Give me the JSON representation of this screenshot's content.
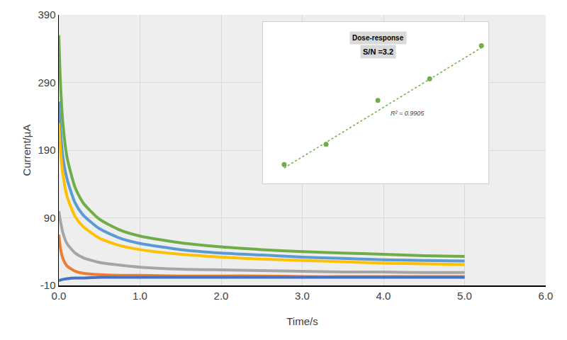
{
  "chart_data": [
    {
      "type": "line",
      "x_label": "Time/s",
      "y_label": "Current/µA",
      "x": [
        0,
        0.02,
        0.05,
        0.1,
        0.2,
        0.3,
        0.5,
        0.75,
        1,
        1.5,
        2,
        2.5,
        3,
        3.5,
        4,
        4.5,
        5
      ],
      "series": [
        {
          "color": "#70ad47",
          "values": [
            360,
            290,
            230,
            180,
            135,
            112,
            88,
            72,
            63,
            53,
            47,
            43,
            40,
            38,
            36,
            34,
            33
          ]
        },
        {
          "color": "#5b9bd5",
          "values": [
            262,
            220,
            180,
            148,
            112,
            94,
            74,
            60,
            52,
            43,
            38,
            35,
            32,
            30,
            28,
            27,
            26
          ]
        },
        {
          "color": "#ffc000",
          "values": [
            230,
            190,
            155,
            122,
            92,
            77,
            60,
            49,
            43,
            36,
            32,
            29,
            27,
            25,
            23,
            22,
            21
          ]
        },
        {
          "color": "#a5a5a5",
          "values": [
            100,
            85,
            68,
            52,
            38,
            31,
            24,
            20,
            17,
            14,
            13,
            12,
            11,
            10,
            10,
            9,
            9
          ]
        },
        {
          "color": "#ed7d31",
          "values": [
            65,
            45,
            30,
            19,
            11,
            8,
            6,
            5,
            5,
            4,
            4,
            4,
            3,
            3,
            3,
            3,
            3
          ]
        },
        {
          "color": "#4472c4",
          "values": [
            -3,
            -2,
            -1,
            0,
            1,
            1,
            2,
            2,
            2,
            2,
            2,
            2,
            2,
            2,
            2,
            2,
            2
          ]
        }
      ],
      "xlim": [
        0,
        6
      ],
      "xticks": [
        {
          "value": 0,
          "label": "0.0"
        },
        {
          "value": 1,
          "label": "1.0"
        },
        {
          "value": 2,
          "label": "2.0"
        },
        {
          "value": 3,
          "label": "3.0"
        },
        {
          "value": 4,
          "label": "4.0"
        },
        {
          "value": 5,
          "label": "5.0"
        },
        {
          "value": 6,
          "label": "6.0"
        }
      ],
      "ylim": [
        -10,
        390
      ],
      "yticks": [
        -10,
        90,
        190,
        290,
        390
      ],
      "grid": true
    },
    {
      "type": "scatter",
      "title": "Dose-response",
      "subtitle": "S/N =3.2",
      "annotations": [
        "R² = 0.9905"
      ],
      "series": [
        {
          "type": "scatter",
          "marker": "circle",
          "color": "#70ad47",
          "x": [
            1,
            1.85,
            2.9,
            3.95,
            5
          ],
          "values": [
            177,
            207,
            272,
            304,
            353
          ]
        },
        {
          "type": "line",
          "line_style": "dotted",
          "color": "#70ad47",
          "x": [
            1,
            5
          ],
          "values": [
            172,
            350
          ]
        }
      ],
      "xlim": [
        0.57,
        5.14
      ],
      "ylim": [
        149,
        388
      ],
      "grid": false,
      "tick_labels": false
    }
  ]
}
